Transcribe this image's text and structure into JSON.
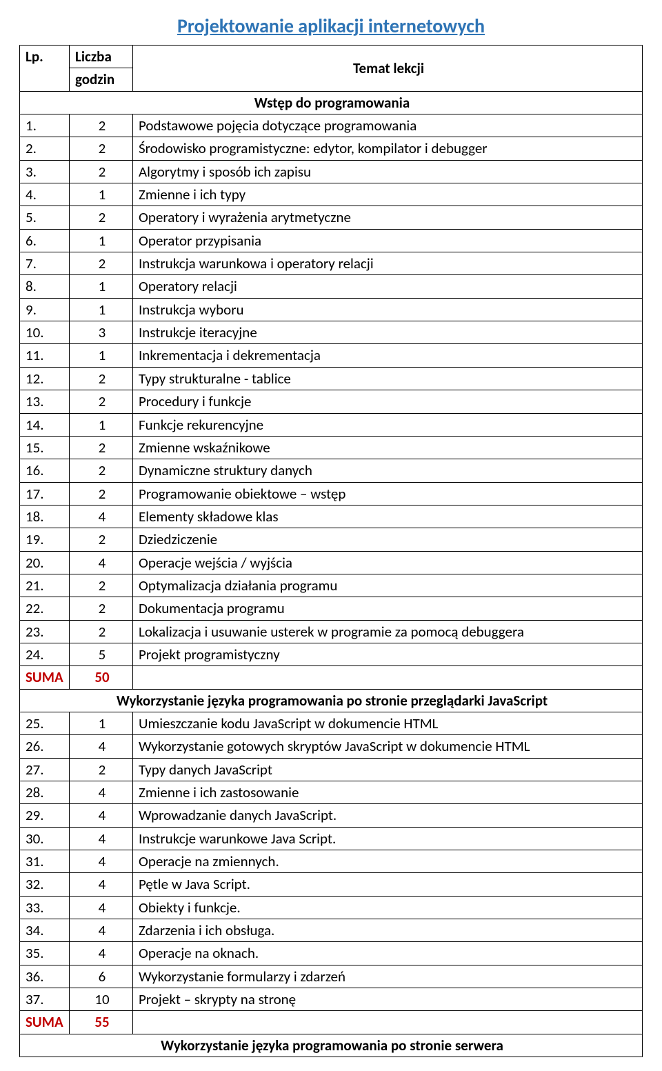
{
  "title": "Projektowanie aplikacji internetowych",
  "headers": {
    "lp": "Lp.",
    "hours_line1": "Liczba",
    "hours_line2": "godzin",
    "topic": "Temat lekcji"
  },
  "colors": {
    "title": "#2e74b5",
    "sum": "#c00000"
  },
  "section1": "Wstęp do programowania",
  "rows1": [
    {
      "lp": "1.",
      "h": "2",
      "t": "Podstawowe pojęcia dotyczące programowania"
    },
    {
      "lp": "2.",
      "h": "2",
      "t": "Środowisko programistyczne: edytor, kompilator i debugger"
    },
    {
      "lp": "3.",
      "h": "2",
      "t": "Algorytmy i sposób ich zapisu"
    },
    {
      "lp": "4.",
      "h": "1",
      "t": "Zmienne i ich typy"
    },
    {
      "lp": "5.",
      "h": "2",
      "t": "Operatory i wyrażenia arytmetyczne"
    },
    {
      "lp": "6.",
      "h": "1",
      "t": "Operator przypisania"
    },
    {
      "lp": "7.",
      "h": "2",
      "t": "Instrukcja warunkowa i operatory relacji"
    },
    {
      "lp": "8.",
      "h": "1",
      "t": "Operatory relacji"
    },
    {
      "lp": "9.",
      "h": "1",
      "t": "Instrukcja wyboru"
    },
    {
      "lp": "10.",
      "h": "3",
      "t": "Instrukcje iteracyjne"
    },
    {
      "lp": "11.",
      "h": "1",
      "t": "Inkrementacja i dekrementacja"
    },
    {
      "lp": "12.",
      "h": "2",
      "t": "Typy strukturalne - tablice"
    },
    {
      "lp": "13.",
      "h": "2",
      "t": "Procedury i funkcje"
    },
    {
      "lp": "14.",
      "h": "1",
      "t": "Funkcje rekurencyjne"
    },
    {
      "lp": "15.",
      "h": "2",
      "t": "Zmienne wskaźnikowe"
    },
    {
      "lp": "16.",
      "h": "2",
      "t": "Dynamiczne struktury danych"
    },
    {
      "lp": "17.",
      "h": "2",
      "t": "Programowanie obiektowe – wstęp"
    },
    {
      "lp": "18.",
      "h": "4",
      "t": "Elementy składowe klas"
    },
    {
      "lp": "19.",
      "h": "2",
      "t": "Dziedziczenie"
    },
    {
      "lp": "20.",
      "h": "4",
      "t": "Operacje wejścia / wyjścia"
    },
    {
      "lp": "21.",
      "h": "2",
      "t": "Optymalizacja działania programu"
    },
    {
      "lp": "22.",
      "h": "2",
      "t": "Dokumentacja programu"
    },
    {
      "lp": "23.",
      "h": "2",
      "t": "Lokalizacja i usuwanie usterek w programie za pomocą debuggera"
    },
    {
      "lp": "24.",
      "h": "5",
      "t": "Projekt programistyczny"
    }
  ],
  "sum1": {
    "label": "SUMA",
    "value": "50"
  },
  "section2": "Wykorzystanie języka programowania po stronie przeglądarki JavaScript",
  "rows2": [
    {
      "lp": "25.",
      "h": "1",
      "t": "Umieszczanie kodu JavaScript w dokumencie HTML"
    },
    {
      "lp": "26.",
      "h": "4",
      "t": "Wykorzystanie gotowych skryptów JavaScript w dokumencie HTML"
    },
    {
      "lp": "27.",
      "h": "2",
      "t": "Typy danych JavaScript"
    },
    {
      "lp": "28.",
      "h": "4",
      "t": "Zmienne i ich zastosowanie"
    },
    {
      "lp": "29.",
      "h": "4",
      "t": "Wprowadzanie danych JavaScript."
    },
    {
      "lp": "30.",
      "h": "4",
      "t": "Instrukcje warunkowe Java Script."
    },
    {
      "lp": "31.",
      "h": "4",
      "t": "Operacje na zmiennych."
    },
    {
      "lp": "32.",
      "h": "4",
      "t": "Pętle w Java Script."
    },
    {
      "lp": "33.",
      "h": "4",
      "t": "Obiekty i funkcje."
    },
    {
      "lp": "34.",
      "h": "4",
      "t": "Zdarzenia i ich obsługa."
    },
    {
      "lp": "35.",
      "h": "4",
      "t": " Operacje na oknach."
    },
    {
      "lp": "36.",
      "h": "6",
      "t": " Wykorzystanie formularzy i zdarzeń"
    },
    {
      "lp": "37.",
      "h": "10",
      "t": " Projekt – skrypty na stronę"
    }
  ],
  "sum2": {
    "label": "SUMA",
    "value": "55"
  },
  "section3": "Wykorzystanie języka programowania po stronie serwera"
}
